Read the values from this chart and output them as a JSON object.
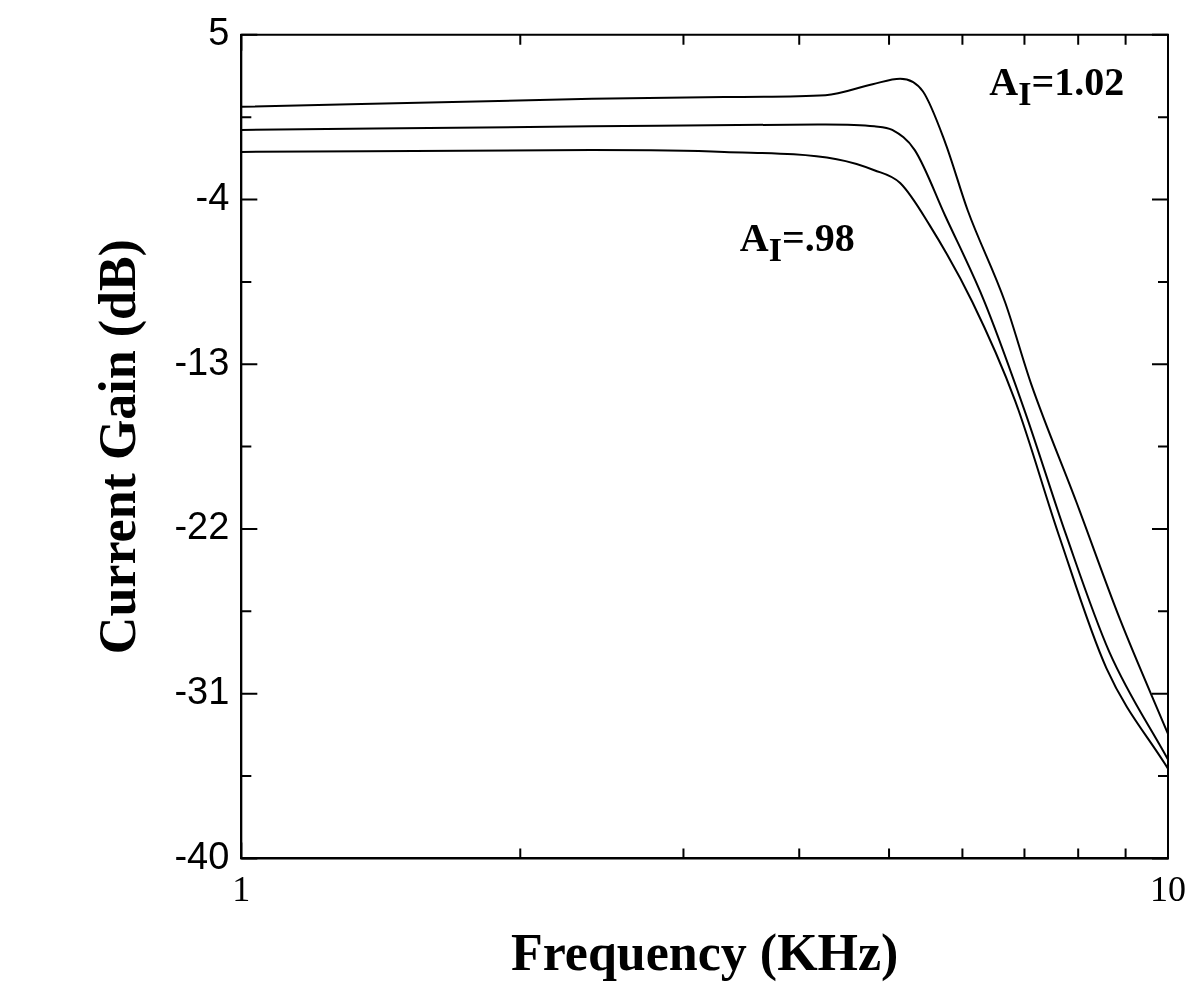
{
  "chart_data": {
    "type": "line",
    "xlabel": "Frequency (KHz)",
    "ylabel": "Current Gain (dB)",
    "log": "x",
    "xlim": [
      1,
      10
    ],
    "ylim": [
      -40,
      5
    ],
    "xticks": [
      1,
      {
        "value": 2,
        "label": null
      },
      {
        "value": 3,
        "label": null
      },
      {
        "value": 4,
        "label": null
      },
      {
        "value": 5,
        "label": null
      },
      {
        "value": 6,
        "label": null
      },
      {
        "value": 7,
        "label": null
      },
      {
        "value": 8,
        "label": null
      },
      {
        "value": 9,
        "label": null
      },
      10
    ],
    "yticks": [
      5,
      {
        "value": 0.5,
        "label": null
      },
      -4,
      {
        "value": -8.5,
        "label": null
      },
      -13,
      {
        "value": -17.5,
        "label": null
      },
      -22,
      {
        "value": -26.5,
        "label": null
      },
      -31,
      {
        "value": -35.5,
        "label": null
      },
      -40
    ],
    "grid": false,
    "legend": false,
    "marker": "none",
    "line_style": "solid",
    "series": [
      {
        "color": "#000000",
        "x": [
          1,
          2.39,
          3.32,
          4.27,
          4.8,
          5.14,
          5.44,
          5.75,
          6.08,
          6.67,
          7.12,
          7.96,
          8.87,
          10
        ],
        "values": [
          1.07,
          1.5,
          1.6,
          1.7,
          2.3,
          2.6,
          1.9,
          -0.9,
          -4.6,
          -9.6,
          -14.1,
          -20.5,
          -26.9,
          -33.2
        ]
      },
      {
        "color": "#000000",
        "x": [
          1,
          2.39,
          4.27,
          4.82,
          5.04,
          5.33,
          5.75,
          6.34,
          7.01,
          7.76,
          8.64,
          10
        ],
        "values": [
          -0.2,
          0,
          0.1,
          0,
          -0.2,
          -1.3,
          -4.9,
          -9.6,
          -15.6,
          -22.3,
          -28.7,
          -34.6
        ]
      },
      {
        "color": "#000000",
        "x": [
          1,
          2.39,
          3.32,
          4.39,
          4.82,
          5.14,
          5.53,
          6.15,
          6.84,
          7.62,
          8.58,
          10
        ],
        "values": [
          -1.4,
          -1.3,
          -1.4,
          -1.8,
          -2.4,
          -3.1,
          -5.4,
          -9.6,
          -15.0,
          -22.3,
          -29.6,
          -35.1
        ]
      }
    ],
    "annotations": [
      "A$_{I}$=1.02",
      "A$_{I}$=.98"
    ]
  }
}
